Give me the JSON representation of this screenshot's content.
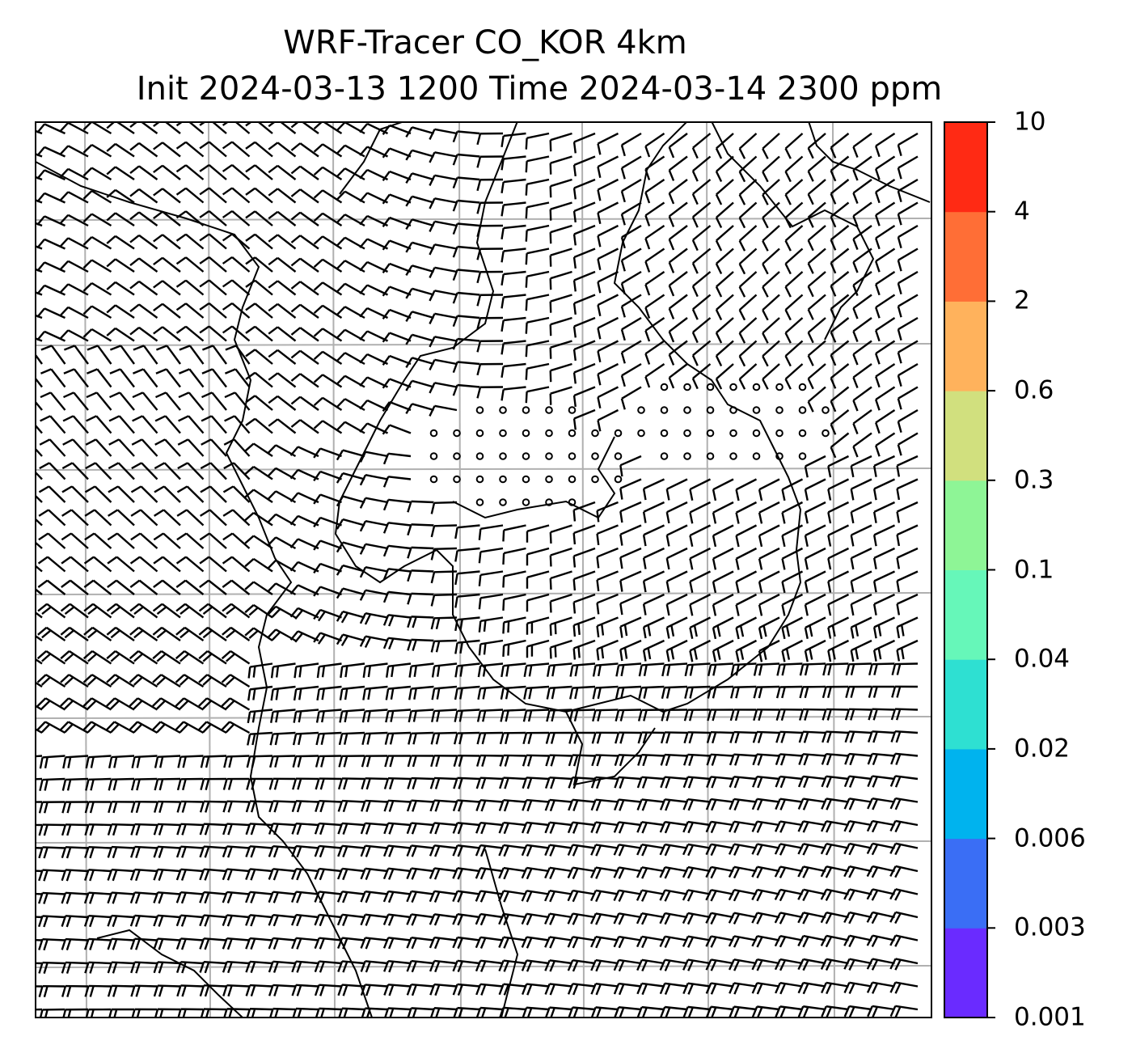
{
  "title": {
    "line1": "WRF-Tracer CO_KOR 4km",
    "line2": "Init 2024-03-13 1200 Time 2024-03-14 2300 ppm"
  },
  "colorbar": {
    "levels": [
      "0.001",
      "0.003",
      "0.006",
      "0.02",
      "0.04",
      "0.1",
      "0.3",
      "0.6",
      "2",
      "4",
      "10"
    ],
    "colors": [
      "#6a2bff",
      "#3a6ef5",
      "#00b3ee",
      "#2ee0d2",
      "#66f7b9",
      "#8ef596",
      "#d1e07e",
      "#ffb25c",
      "#ff6e36",
      "#ff2a14"
    ]
  },
  "map": {
    "barb_color": "#000000",
    "grid_color": "#b0b0b0",
    "coast_color": "#000000"
  }
}
